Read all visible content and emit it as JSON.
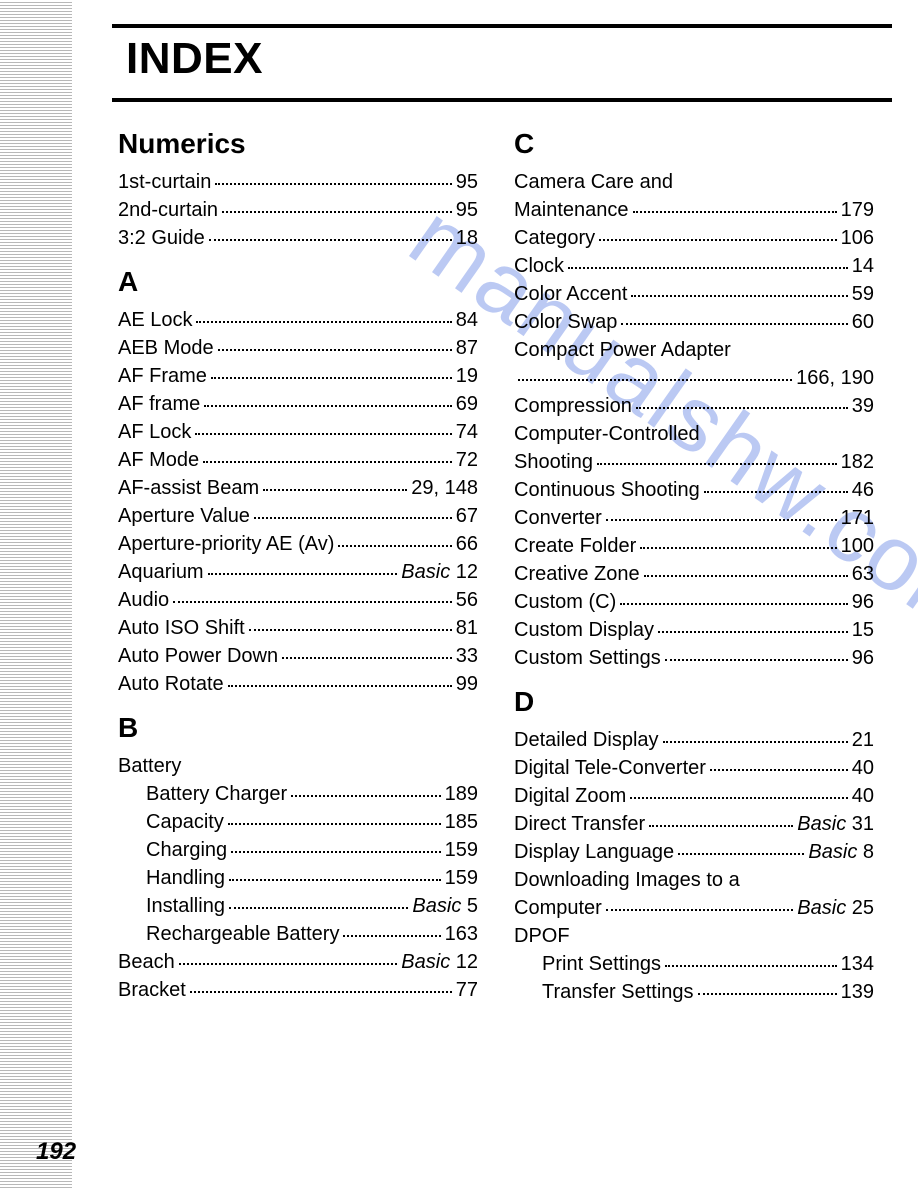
{
  "page": {
    "title": "INDEX",
    "page_number": "192",
    "watermark": "manualshw.com",
    "colors": {
      "text": "#000000",
      "background": "#ffffff",
      "rule": "#000000",
      "spine_pattern_dark": "#b8b8b8",
      "spine_pattern_light": "#ffffff",
      "watermark": "#5a78d6"
    },
    "typography": {
      "title_fontsize": 44,
      "section_fontsize": 28,
      "body_fontsize": 20,
      "line_height": 28,
      "title_font": "Arial Black",
      "body_font": "Arial"
    }
  },
  "left_column": [
    {
      "type": "head",
      "text": "Numerics"
    },
    {
      "type": "entry",
      "term": "1st-curtain",
      "page": "95"
    },
    {
      "type": "entry",
      "term": "2nd-curtain",
      "page": "95"
    },
    {
      "type": "entry",
      "term": "3:2 Guide",
      "page": "18"
    },
    {
      "type": "head",
      "text": "A"
    },
    {
      "type": "entry",
      "term": "AE Lock",
      "page": "84"
    },
    {
      "type": "entry",
      "term": "AEB Mode",
      "page": "87"
    },
    {
      "type": "entry",
      "term": "AF Frame",
      "page": "19"
    },
    {
      "type": "entry",
      "term": "AF frame",
      "page": "69"
    },
    {
      "type": "entry",
      "term": "AF Lock",
      "page": "74"
    },
    {
      "type": "entry",
      "term": "AF Mode",
      "page": "72"
    },
    {
      "type": "entry",
      "term": "AF-assist Beam",
      "page": "29, 148"
    },
    {
      "type": "entry",
      "term": "Aperture Value",
      "page": "67"
    },
    {
      "type": "entry",
      "term": "Aperture-priority AE (Av)",
      "page": "66"
    },
    {
      "type": "entry",
      "term": "Aquarium",
      "page": "12",
      "prefix": "Basic "
    },
    {
      "type": "entry",
      "term": "Audio",
      "page": "56"
    },
    {
      "type": "entry",
      "term": "Auto ISO Shift",
      "page": "81"
    },
    {
      "type": "entry",
      "term": "Auto Power Down",
      "page": "33"
    },
    {
      "type": "entry",
      "term": "Auto Rotate",
      "page": "99"
    },
    {
      "type": "head",
      "text": "B"
    },
    {
      "type": "termonly",
      "term": "Battery"
    },
    {
      "type": "entry",
      "term": "Battery Charger",
      "page": "189",
      "indent": true
    },
    {
      "type": "entry",
      "term": "Capacity",
      "page": "185",
      "indent": true
    },
    {
      "type": "entry",
      "term": "Charging",
      "page": "159",
      "indent": true
    },
    {
      "type": "entry",
      "term": "Handling",
      "page": "159",
      "indent": true
    },
    {
      "type": "entry",
      "term": "Installing",
      "page": "5",
      "prefix": "Basic ",
      "indent": true
    },
    {
      "type": "entry",
      "term": "Rechargeable Battery",
      "page": "163",
      "indent": true
    },
    {
      "type": "entry",
      "term": "Beach",
      "page": "12",
      "prefix": "Basic "
    },
    {
      "type": "entry",
      "term": "Bracket",
      "page": "77"
    }
  ],
  "right_column": [
    {
      "type": "head",
      "text": "C"
    },
    {
      "type": "termonly",
      "term": "Camera Care and"
    },
    {
      "type": "entry",
      "term": "Maintenance",
      "page": "179"
    },
    {
      "type": "entry",
      "term": "Category",
      "page": "106"
    },
    {
      "type": "entry",
      "term": "Clock",
      "page": "14"
    },
    {
      "type": "entry",
      "term": "Color Accent",
      "page": "59"
    },
    {
      "type": "entry",
      "term": "Color Swap",
      "page": "60"
    },
    {
      "type": "termonly",
      "term": "Compact Power Adapter"
    },
    {
      "type": "entry",
      "term": "",
      "page": "166, 190"
    },
    {
      "type": "entry",
      "term": "Compression",
      "page": "39"
    },
    {
      "type": "termonly",
      "term": "Computer-Controlled"
    },
    {
      "type": "entry",
      "term": "Shooting",
      "page": "182"
    },
    {
      "type": "entry",
      "term": "Continuous Shooting",
      "page": "46"
    },
    {
      "type": "entry",
      "term": "Converter",
      "page": "171"
    },
    {
      "type": "entry",
      "term": "Create Folder",
      "page": "100"
    },
    {
      "type": "entry",
      "term": "Creative Zone",
      "page": "63"
    },
    {
      "type": "entry",
      "term": "Custom (C)",
      "page": "96"
    },
    {
      "type": "entry",
      "term": "Custom Display",
      "page": "15"
    },
    {
      "type": "entry",
      "term": "Custom Settings",
      "page": "96"
    },
    {
      "type": "head",
      "text": "D"
    },
    {
      "type": "entry",
      "term": "Detailed Display",
      "page": "21"
    },
    {
      "type": "entry",
      "term": "Digital Tele-Converter",
      "page": "40"
    },
    {
      "type": "entry",
      "term": "Digital Zoom",
      "page": "40"
    },
    {
      "type": "entry",
      "term": "Direct Transfer",
      "page": "31",
      "prefix": "Basic "
    },
    {
      "type": "entry",
      "term": "Display Language",
      "page": "8",
      "prefix": "Basic "
    },
    {
      "type": "termonly",
      "term": "Downloading Images to a"
    },
    {
      "type": "entry",
      "term": "Computer",
      "page": "25",
      "prefix": "Basic "
    },
    {
      "type": "termonly",
      "term": "DPOF"
    },
    {
      "type": "entry",
      "term": "Print Settings",
      "page": "134",
      "indent": true
    },
    {
      "type": "entry",
      "term": "Transfer Settings",
      "page": "139",
      "indent": true
    }
  ]
}
